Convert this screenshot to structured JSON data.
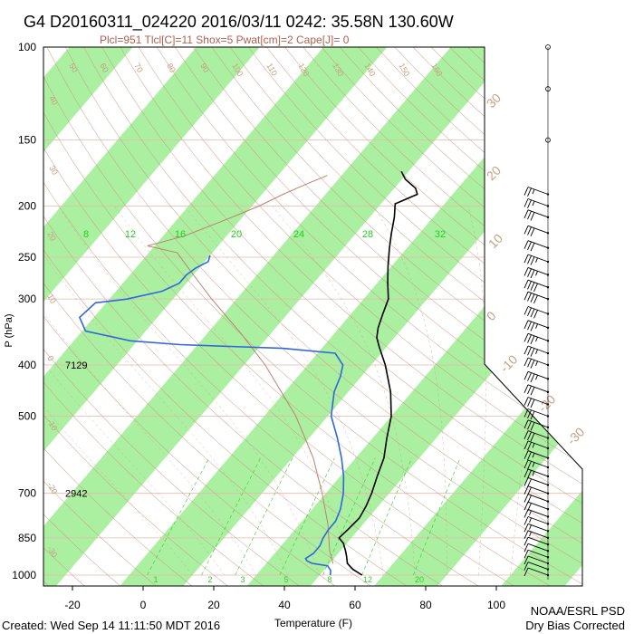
{
  "header": {
    "title": "G4 D20160311_024220 2016/03/11 0242: 35.58N 130.60W",
    "indices": "Plcl=951 Tlcl[C]=11 Shox=5 Pwat[cm]=2 Cape[J]= 0"
  },
  "footer": {
    "created": "Created: Wed Sep 14 11:11:50 MDT 2016",
    "credit_line1": "NOAA/ESRL PSD",
    "credit_line2": "Dry Bias Corrected"
  },
  "colors": {
    "stripe": "#aaf0a0",
    "temperature": "#000000",
    "dewpoint": "#3366dd",
    "isobar": "#e8b8a8",
    "adiabat": "#c99a86",
    "mixing_ratio": "#33cc33",
    "parcel": "#c08070",
    "isotherm_label": "#c8a080"
  },
  "chart_data": {
    "type": "skew-t",
    "xlabel": "Temperature (F)",
    "ylabel": "P (hPa)",
    "x_ticks": [
      "-20",
      "0",
      "20",
      "40",
      "60",
      "80",
      "100"
    ],
    "pressure_ticks": [
      "100",
      "150",
      "200",
      "250",
      "300",
      "400",
      "500",
      "700",
      "850",
      "1000"
    ],
    "height_labels": [
      {
        "pressure": 400,
        "text": "7129"
      },
      {
        "pressure": 700,
        "text": "2942"
      }
    ],
    "isotherm_labels": [
      "-30",
      "-20",
      "-10",
      "0",
      "10",
      "20",
      "30"
    ],
    "theta_labels": [
      "50",
      "60",
      "70",
      "80",
      "90",
      "100",
      "110",
      "120",
      "130",
      "140",
      "150",
      "160",
      "40",
      "30",
      "20",
      "10",
      "0",
      "-10",
      "-20",
      "-30"
    ],
    "mixing_ratio_labels_top": [
      "8",
      "12",
      "16",
      "20",
      "24",
      "28",
      "32"
    ],
    "mixing_ratio_labels_bottom": [
      "1",
      "2",
      "3",
      "5",
      "8",
      "12",
      "20"
    ],
    "temperature_profile_F": [
      {
        "p": 1000,
        "t": 62
      },
      {
        "p": 975,
        "t": 58
      },
      {
        "p": 950,
        "t": 55
      },
      {
        "p": 920,
        "t": 53
      },
      {
        "p": 900,
        "t": 51.5
      },
      {
        "p": 870,
        "t": 49
      },
      {
        "p": 850,
        "t": 46.5
      },
      {
        "p": 820,
        "t": 47
      },
      {
        "p": 780,
        "t": 47.5
      },
      {
        "p": 740,
        "t": 46.5
      },
      {
        "p": 700,
        "t": 45
      },
      {
        "p": 650,
        "t": 42.5
      },
      {
        "p": 600,
        "t": 40
      },
      {
        "p": 550,
        "t": 36
      },
      {
        "p": 500,
        "t": 32
      },
      {
        "p": 450,
        "t": 26
      },
      {
        "p": 400,
        "t": 18
      },
      {
        "p": 370,
        "t": 12
      },
      {
        "p": 355,
        "t": 9
      },
      {
        "p": 340,
        "t": 7
      },
      {
        "p": 320,
        "t": 5
      },
      {
        "p": 300,
        "t": 3
      },
      {
        "p": 280,
        "t": -1
      },
      {
        "p": 260,
        "t": -5
      },
      {
        "p": 240,
        "t": -9
      },
      {
        "p": 225,
        "t": -12
      },
      {
        "p": 210,
        "t": -15
      },
      {
        "p": 198,
        "t": -18
      },
      {
        "p": 190,
        "t": -14
      },
      {
        "p": 185,
        "t": -16
      },
      {
        "p": 178,
        "t": -21
      },
      {
        "p": 172,
        "t": -24
      }
    ],
    "dewpoint_profile_F": [
      {
        "p": 1000,
        "t": 53
      },
      {
        "p": 980,
        "t": 52
      },
      {
        "p": 960,
        "t": 50
      },
      {
        "p": 950,
        "t": 45
      },
      {
        "p": 940,
        "t": 43
      },
      {
        "p": 930,
        "t": 42
      },
      {
        "p": 910,
        "t": 43
      },
      {
        "p": 880,
        "t": 43
      },
      {
        "p": 850,
        "t": 42
      },
      {
        "p": 820,
        "t": 41.5
      },
      {
        "p": 790,
        "t": 41.5
      },
      {
        "p": 750,
        "t": 40
      },
      {
        "p": 700,
        "t": 37
      },
      {
        "p": 650,
        "t": 33
      },
      {
        "p": 600,
        "t": 28
      },
      {
        "p": 550,
        "t": 22
      },
      {
        "p": 500,
        "t": 15
      },
      {
        "p": 450,
        "t": 10
      },
      {
        "p": 420,
        "t": 8
      },
      {
        "p": 400,
        "t": 6
      },
      {
        "p": 380,
        "t": 1
      },
      {
        "p": 372,
        "t": -15
      },
      {
        "p": 366,
        "t": -45
      },
      {
        "p": 360,
        "t": -60
      },
      {
        "p": 345,
        "t": -75
      },
      {
        "p": 325,
        "t": -80
      },
      {
        "p": 305,
        "t": -79
      },
      {
        "p": 300,
        "t": -71
      },
      {
        "p": 290,
        "t": -63
      },
      {
        "p": 280,
        "t": -60
      },
      {
        "p": 270,
        "t": -60
      },
      {
        "p": 262,
        "t": -59
      },
      {
        "p": 255,
        "t": -57
      },
      {
        "p": 248,
        "t": -58
      }
    ],
    "parcel_path_F": [
      {
        "p": 951,
        "t": 51
      },
      {
        "p": 900,
        "t": 47
      },
      {
        "p": 800,
        "t": 40
      },
      {
        "p": 700,
        "t": 31
      },
      {
        "p": 600,
        "t": 20
      },
      {
        "p": 500,
        "t": 5
      },
      {
        "p": 400,
        "t": -16
      },
      {
        "p": 350,
        "t": -30
      },
      {
        "p": 300,
        "t": -47
      },
      {
        "p": 270,
        "t": -58
      },
      {
        "p": 245,
        "t": -68
      },
      {
        "p": 238,
        "t": -78
      },
      {
        "p": 228,
        "t": -70
      },
      {
        "p": 212,
        "t": -62
      },
      {
        "p": 200,
        "t": -56
      },
      {
        "p": 190,
        "t": -52
      },
      {
        "p": 182,
        "t": -48
      },
      {
        "p": 175,
        "t": -44
      }
    ],
    "wind_barbs": [
      {
        "p": 1000,
        "speed_kt": 10
      },
      {
        "p": 975,
        "speed_kt": 10
      },
      {
        "p": 950,
        "speed_kt": 10
      },
      {
        "p": 925,
        "speed_kt": 10
      },
      {
        "p": 900,
        "speed_kt": 10
      },
      {
        "p": 875,
        "speed_kt": 10
      },
      {
        "p": 850,
        "speed_kt": 15
      },
      {
        "p": 825,
        "speed_kt": 15
      },
      {
        "p": 800,
        "speed_kt": 15
      },
      {
        "p": 775,
        "speed_kt": 15
      },
      {
        "p": 750,
        "speed_kt": 20
      },
      {
        "p": 725,
        "speed_kt": 20
      },
      {
        "p": 700,
        "speed_kt": 20
      },
      {
        "p": 675,
        "speed_kt": 20
      },
      {
        "p": 650,
        "speed_kt": 25
      },
      {
        "p": 625,
        "speed_kt": 25
      },
      {
        "p": 600,
        "speed_kt": 25
      },
      {
        "p": 575,
        "speed_kt": 25
      },
      {
        "p": 550,
        "speed_kt": 30
      },
      {
        "p": 525,
        "speed_kt": 30
      },
      {
        "p": 500,
        "speed_kt": 30
      },
      {
        "p": 475,
        "speed_kt": 30
      },
      {
        "p": 450,
        "speed_kt": 30
      },
      {
        "p": 425,
        "speed_kt": 35
      },
      {
        "p": 400,
        "speed_kt": 35
      },
      {
        "p": 380,
        "speed_kt": 35
      },
      {
        "p": 360,
        "speed_kt": 35
      },
      {
        "p": 340,
        "speed_kt": 35
      },
      {
        "p": 320,
        "speed_kt": 40
      },
      {
        "p": 300,
        "speed_kt": 40
      },
      {
        "p": 285,
        "speed_kt": 40
      },
      {
        "p": 270,
        "speed_kt": 35
      },
      {
        "p": 255,
        "speed_kt": 35
      },
      {
        "p": 240,
        "speed_kt": 30
      },
      {
        "p": 225,
        "speed_kt": 30
      },
      {
        "p": 210,
        "speed_kt": 30
      },
      {
        "p": 200,
        "speed_kt": 25
      },
      {
        "p": 190,
        "speed_kt": 25
      }
    ],
    "calm_markers": [
      {
        "p": 100
      },
      {
        "p": 120
      },
      {
        "p": 150
      }
    ]
  }
}
